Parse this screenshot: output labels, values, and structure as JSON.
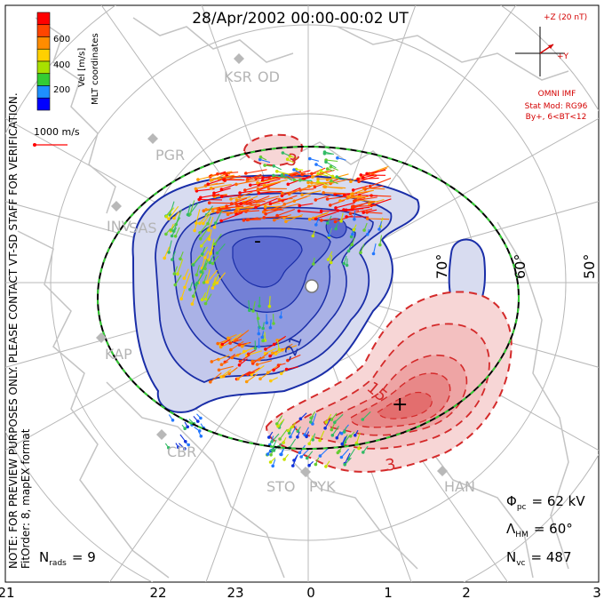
{
  "header": {
    "title": "28/Apr/2002 00:00-00:02 UT"
  },
  "colorbar": {
    "label": "Vel [m/s]",
    "ticks": [
      "600",
      "400",
      "200"
    ],
    "colors": [
      "#ff0000",
      "#ff4500",
      "#ff8c00",
      "#ffd000",
      "#a8e000",
      "#33cc33",
      "#1e90ff",
      "#0000ff"
    ]
  },
  "coords_label": "MLT coordinates",
  "scale_vector": {
    "label": "1000 m/s",
    "color": "#ff0000"
  },
  "notes": {
    "verify": "NOTE: FOR PREVIEW PURPOSES ONLY. PLEASE CONTACT VT-SD STAFF FOR VERIFICATION.",
    "fit": "FitOrder: 8, mapEX format"
  },
  "imf": {
    "title": "+Z (20 nT)",
    "y_label": "+Y",
    "source": "OMNI IMF",
    "model": "Stat Mod: RG96",
    "condition": "By+, 6<BT<12",
    "color": "#d40000"
  },
  "stations": [
    "KSR",
    "OD",
    "PGR",
    "INV",
    "KAP",
    "SAS",
    "CBR",
    "STO",
    "PYK",
    "HAN"
  ],
  "latitude_labels": [
    "70°",
    "60°",
    "50°"
  ],
  "contour_labels": {
    "neg_a": "-21",
    "neg_b": "-",
    "pos_a": "15",
    "pos_b": "3",
    "pos_c": "3",
    "pos_d": "+"
  },
  "stats": {
    "phi": "Φ",
    "phi_sub": "pc",
    "phi_val": "= 62 kV",
    "lambda": "Λ",
    "lambda_sub": "HM",
    "lambda_val": "= 60°",
    "nvc": "N",
    "nvc_sub": "vc",
    "nvc_val": "= 487",
    "nrads": "N",
    "nrads_sub": "rads",
    "nrads_val": "= 9"
  },
  "mlt_axis": [
    "21",
    "22",
    "23",
    "0",
    "1",
    "2",
    "3"
  ],
  "colors": {
    "negative": "#1a2ea8",
    "positive": "#d42a2a",
    "hmb": "#33cc33",
    "grid": "#b0b0b0",
    "coast": "#c0c0c0"
  }
}
